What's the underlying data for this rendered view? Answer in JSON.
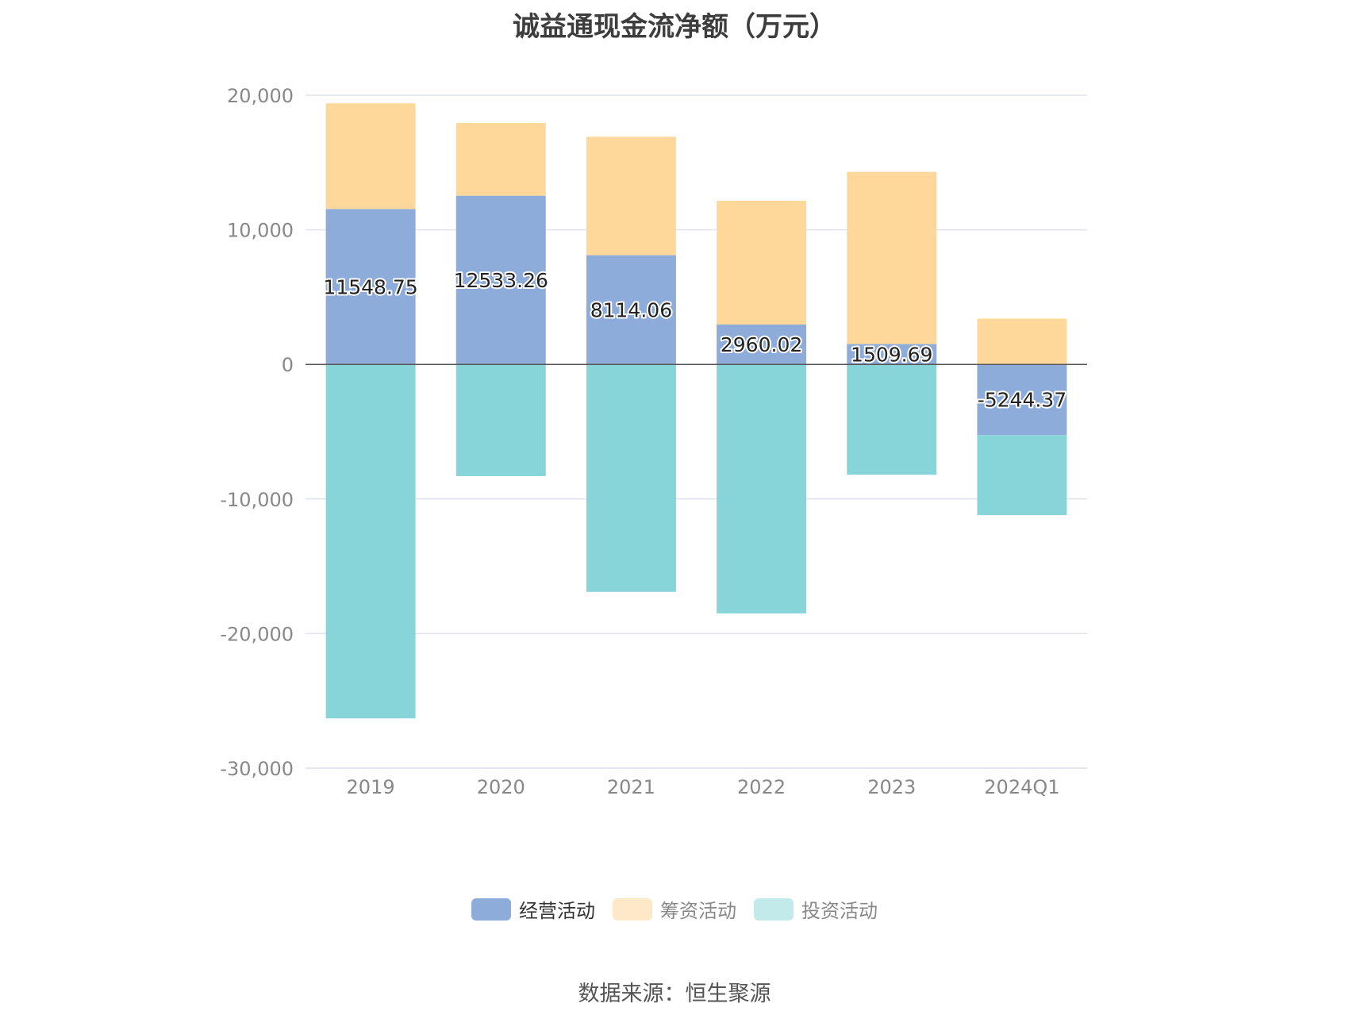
{
  "title": "诚益通现金流净额（万元）",
  "source": "数据来源：恒生聚源",
  "colors": {
    "operating": "#8eacda",
    "financing": "#fed89b",
    "investing": "#87d5d8",
    "financing_legend": "#fde9c8",
    "investing_legend": "#c3eaeb",
    "axis_text": "#888888",
    "grid": "#e0e4f0",
    "zero_line": "#555555"
  },
  "legend": [
    {
      "name": "经营活动",
      "key": "operating"
    },
    {
      "name": "筹资活动",
      "key": "financing"
    },
    {
      "name": "投资活动",
      "key": "investing"
    }
  ],
  "chart_data": {
    "type": "bar",
    "stacked": true,
    "categories": [
      "2019",
      "2020",
      "2021",
      "2022",
      "2023",
      "2024Q1"
    ],
    "series": [
      {
        "name": "经营活动",
        "key": "operating",
        "values": [
          11548.75,
          12533.26,
          8114.06,
          2960.02,
          1509.69,
          -5244.37
        ],
        "labels": [
          "11548.75",
          "12533.26",
          "8114.06",
          "2960.02",
          "1509.69",
          "-5244.37"
        ]
      },
      {
        "name": "筹资活动",
        "key": "financing",
        "values": [
          7850,
          5400,
          8800,
          9200,
          12800,
          3400
        ]
      },
      {
        "name": "投资活动",
        "key": "investing",
        "values": [
          -26300,
          -8300,
          -16900,
          -18500,
          -8200,
          -5950
        ]
      }
    ],
    "ylim": [
      -30000,
      20000
    ],
    "yticks": [
      20000,
      10000,
      0,
      -10000,
      -20000,
      -30000
    ],
    "ytick_labels": [
      "20,000",
      "10,000",
      "0",
      "-10,000",
      "-20,000",
      "-30,000"
    ],
    "grid": true,
    "legend_position": "bottom"
  }
}
